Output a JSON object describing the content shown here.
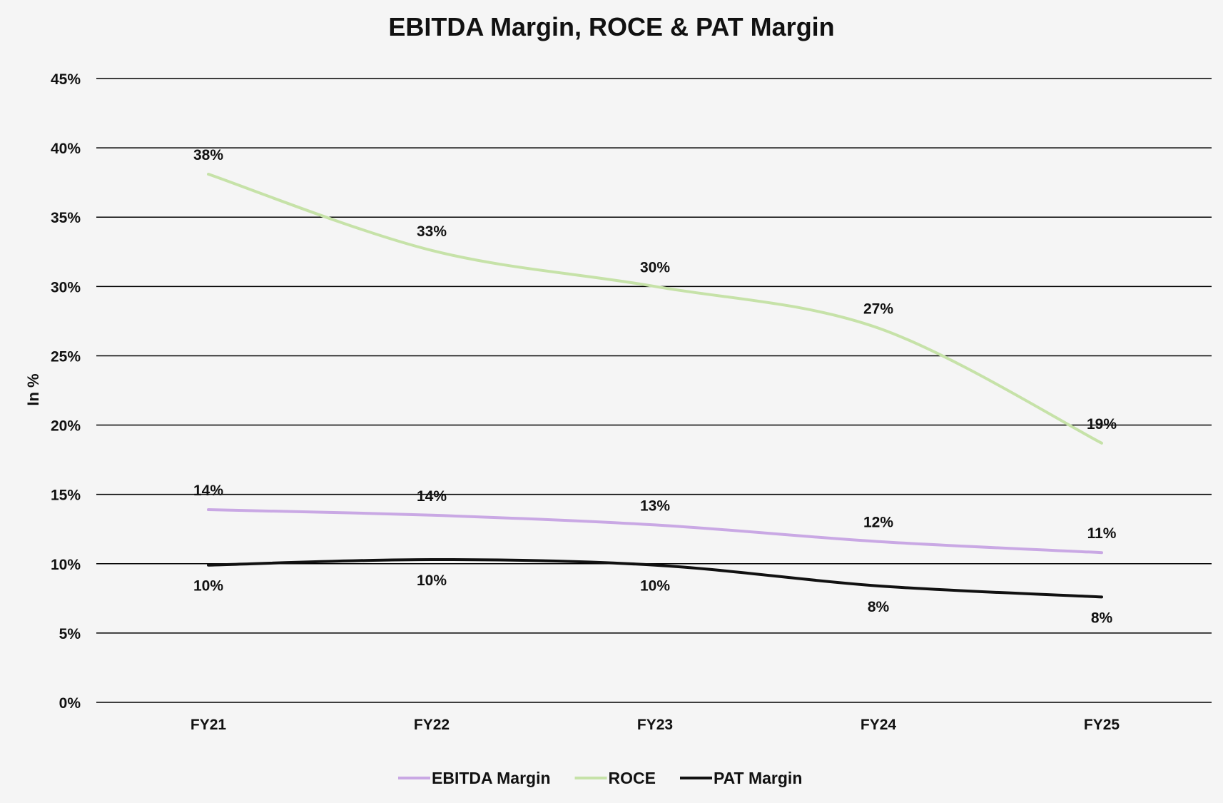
{
  "chart_data": {
    "type": "line",
    "title": "EBITDA Margin, ROCE & PAT Margin",
    "xlabel": "",
    "ylabel": "In %",
    "categories": [
      "FY21",
      "FY22",
      "FY23",
      "FY24",
      "FY25"
    ],
    "ylim": [
      0,
      45
    ],
    "yticks": [
      0,
      5,
      10,
      15,
      20,
      25,
      30,
      35,
      40,
      45
    ],
    "ytick_labels": [
      "0%",
      "5%",
      "10%",
      "15%",
      "20%",
      "25%",
      "30%",
      "35%",
      "40%",
      "45%"
    ],
    "grid": true,
    "smooth": true,
    "legend_position": "bottom",
    "series": [
      {
        "name": "EBITDA Margin",
        "color": "#c9a8e4",
        "values": [
          13.9,
          13.5,
          12.8,
          11.6,
          10.8
        ],
        "labels": [
          "14%",
          "14%",
          "13%",
          "12%",
          "11%"
        ],
        "label_position": "above"
      },
      {
        "name": "ROCE",
        "color": "#c6e2a8",
        "values": [
          38.1,
          32.6,
          30.0,
          27.0,
          18.7
        ],
        "labels": [
          "38%",
          "33%",
          "30%",
          "27%",
          "19%"
        ],
        "label_position": "above"
      },
      {
        "name": "PAT Margin",
        "color": "#111111",
        "values": [
          9.9,
          10.3,
          9.9,
          8.4,
          7.6
        ],
        "labels": [
          "10%",
          "10%",
          "10%",
          "8%",
          "8%"
        ],
        "label_position": "below"
      }
    ]
  }
}
